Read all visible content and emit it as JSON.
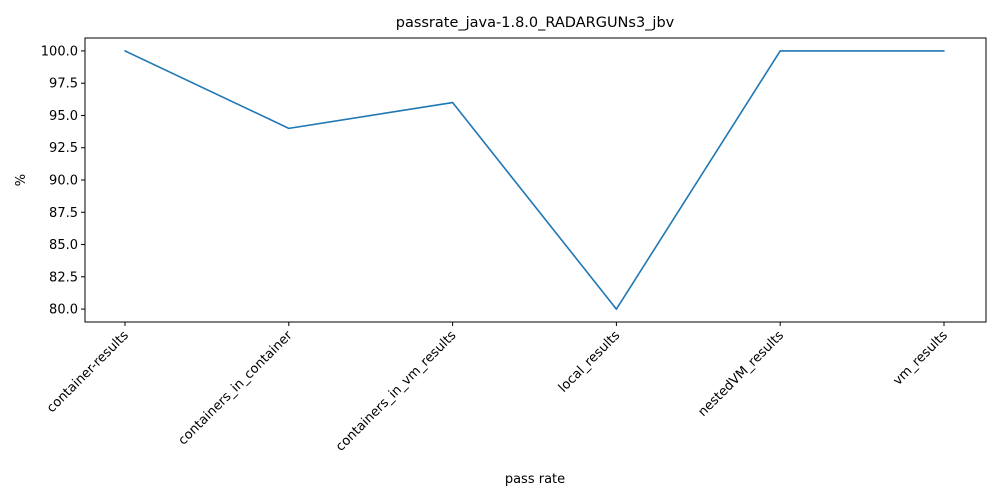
{
  "chart_data": {
    "type": "line",
    "title": "passrate_java-1.8.0_RADARGUNs3_jbv",
    "xlabel": "pass rate",
    "ylabel": "%",
    "categories": [
      "container-results",
      "containers_in_container",
      "containers_in_vm_results",
      "local_results",
      "nestedVM_results",
      "vm_results"
    ],
    "series": [
      {
        "values": [
          100.0,
          94.0,
          96.0,
          80.0,
          100.0,
          100.0
        ],
        "color": "#1f77b4"
      }
    ],
    "ylim": [
      79.0,
      101.0
    ],
    "yticks": [
      80.0,
      82.5,
      85.0,
      87.5,
      90.0,
      92.5,
      95.0,
      97.5,
      100.0
    ],
    "ytick_labels": [
      "80.0",
      "82.5",
      "85.0",
      "87.5",
      "90.0",
      "92.5",
      "95.0",
      "97.5",
      "100.0"
    ],
    "grid": false,
    "legend": "none"
  }
}
